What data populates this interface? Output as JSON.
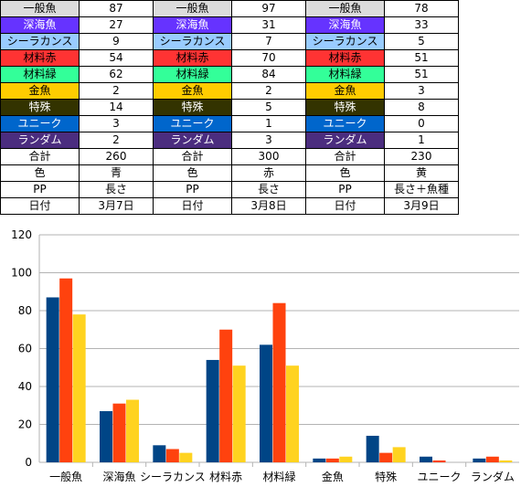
{
  "table": {
    "rows": [
      {
        "cells": [
          "一般魚",
          "87",
          "一般魚",
          "97",
          "一般魚",
          "78"
        ],
        "bg": "#dcdcdc",
        "fg": "#000000"
      },
      {
        "cells": [
          "深海魚",
          "27",
          "深海魚",
          "31",
          "深海魚",
          "33"
        ],
        "bg": "#6633ff",
        "fg": "#ffffff"
      },
      {
        "cells": [
          "シーラカンス",
          "9",
          "シーラカンス",
          "7",
          "シーラカンス",
          "5"
        ],
        "bg": "#99ccff",
        "fg": "#000000"
      },
      {
        "cells": [
          "材料赤",
          "54",
          "材料赤",
          "70",
          "材料赤",
          "51"
        ],
        "bg": "#ff3333",
        "fg": "#000000"
      },
      {
        "cells": [
          "材料緑",
          "62",
          "材料緑",
          "84",
          "材料緑",
          "51"
        ],
        "bg": "#33ff99",
        "fg": "#000000"
      },
      {
        "cells": [
          "金魚",
          "2",
          "金魚",
          "2",
          "金魚",
          "3"
        ],
        "bg": "#ffcc00",
        "fg": "#000000"
      },
      {
        "cells": [
          "特殊",
          "14",
          "特殊",
          "5",
          "特殊",
          "8"
        ],
        "bg": "#333300",
        "fg": "#ffffff"
      },
      {
        "cells": [
          "ユニーク",
          "3",
          "ユニーク",
          "1",
          "ユニーク",
          "0"
        ],
        "bg": "#0066cc",
        "fg": "#ffffff"
      },
      {
        "cells": [
          "ランダム",
          "2",
          "ランダム",
          "3",
          "ランダム",
          "1"
        ],
        "bg": "#4b2d7f",
        "fg": "#ffffff"
      },
      {
        "cells": [
          "合計",
          "260",
          "合計",
          "300",
          "合計",
          "230"
        ],
        "bg": "#ffffff",
        "fg": "#000000"
      },
      {
        "cells": [
          "色",
          "青",
          "色",
          "赤",
          "色",
          "黄"
        ],
        "bg": "#ffffff",
        "fg": "#000000"
      },
      {
        "cells": [
          "PP",
          "長さ",
          "PP",
          "長さ",
          "PP",
          "長さ＋魚種"
        ],
        "bg": "#ffffff",
        "fg": "#000000"
      },
      {
        "cells": [
          "日付",
          "3月7日",
          "日付",
          "3月8日",
          "日付",
          "3月9日"
        ],
        "bg": "#ffffff",
        "fg": "#000000"
      }
    ]
  },
  "chart_data": {
    "type": "bar",
    "categories": [
      "一般魚",
      "深海魚",
      "シーラカンス",
      "材料赤",
      "材料緑",
      "金魚",
      "特殊",
      "ユニーク",
      "ランダム"
    ],
    "series": [
      {
        "values": [
          87,
          27,
          9,
          54,
          62,
          2,
          14,
          3,
          2
        ],
        "color": "#004586"
      },
      {
        "values": [
          97,
          31,
          7,
          70,
          84,
          2,
          5,
          1,
          3
        ],
        "color": "#ff420e"
      },
      {
        "values": [
          78,
          33,
          5,
          51,
          51,
          3,
          8,
          0,
          1
        ],
        "color": "#ffd320"
      }
    ],
    "ylim": [
      0,
      120
    ],
    "yticks": [
      "0",
      "20",
      "40",
      "60",
      "80",
      "100",
      "120"
    ],
    "grid": true,
    "legend": "none"
  }
}
